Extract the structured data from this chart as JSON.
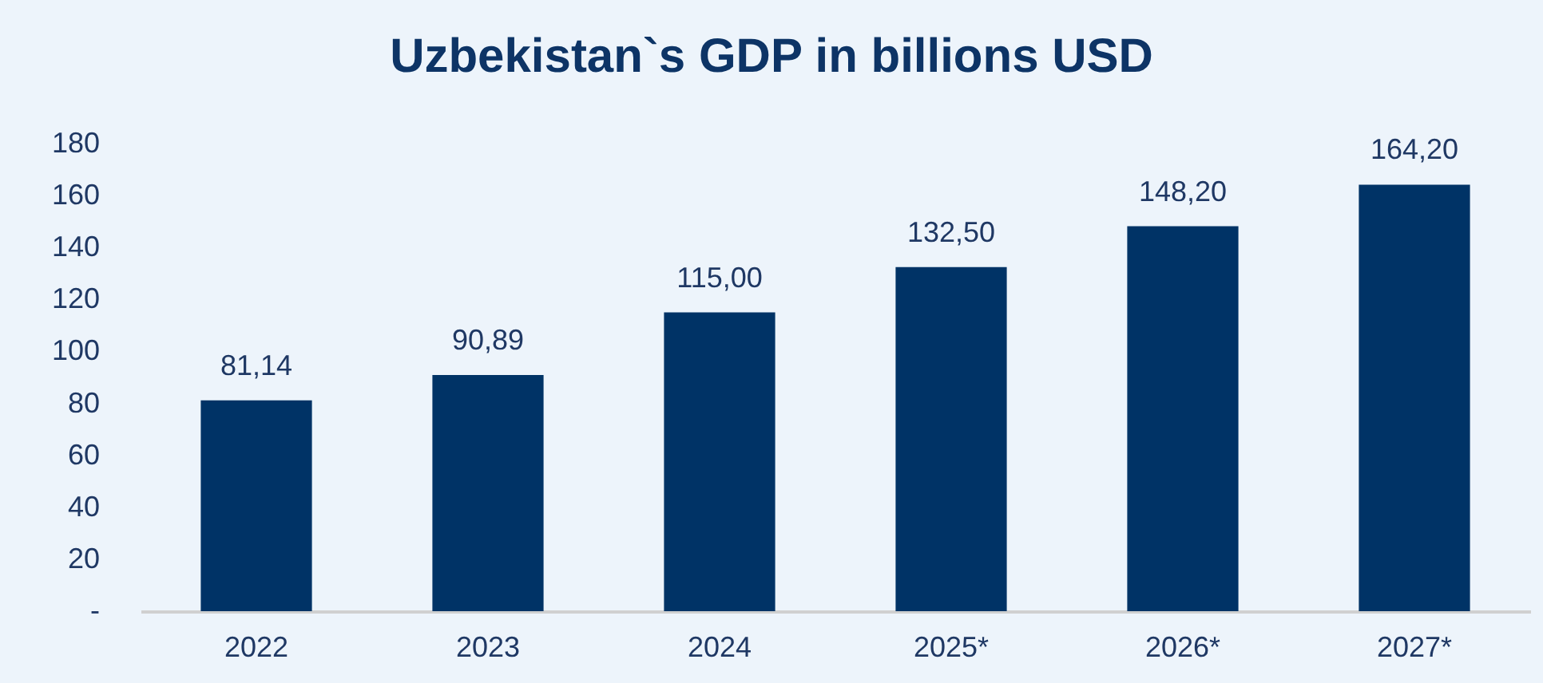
{
  "chart_data": {
    "type": "bar",
    "title": "Uzbekistan`s GDP in billions USD",
    "categories": [
      "2022",
      "2023",
      "2024",
      "2025*",
      "2026*",
      "2027*"
    ],
    "values": [
      81.14,
      90.89,
      115.0,
      132.5,
      148.2,
      164.2
    ],
    "value_labels": [
      "81,14",
      "90,89",
      "115,00",
      "132,50",
      "148,20",
      "164,20"
    ],
    "color": "#003366",
    "ylim": [
      0,
      180
    ],
    "yticks": [
      {
        "value": 0,
        "label": "-"
      },
      20,
      40,
      60,
      80,
      100,
      120,
      140,
      160,
      180
    ],
    "grid": false
  }
}
